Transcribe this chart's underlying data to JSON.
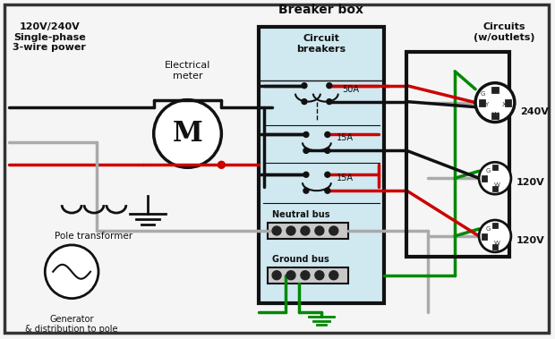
{
  "bg_color": "#f5f5f5",
  "title": "Breaker box",
  "wire_colors": {
    "black": "#111111",
    "red": "#cc0000",
    "green": "#008800",
    "gray": "#aaaaaa",
    "white": "#ffffff"
  },
  "labels": {
    "top_left": "120V/240V\nSingle-phase\n3-wire power",
    "meter": "Electrical\nmeter",
    "breaker_box": "Breaker box",
    "circuit_breakers": "Circuit\nbreakers",
    "circuits": "Circuits\n(w/outlets)",
    "pole_transformer": "Pole transformer",
    "generator": "Generator\n& distribution to pole",
    "50A": "50A",
    "15A_1": "15A",
    "15A_2": "15A",
    "neutral_bus": "Neutral bus",
    "ground_bus": "Ground bus",
    "240V": "240V",
    "120V_1": "120V",
    "120V_2": "120V"
  }
}
